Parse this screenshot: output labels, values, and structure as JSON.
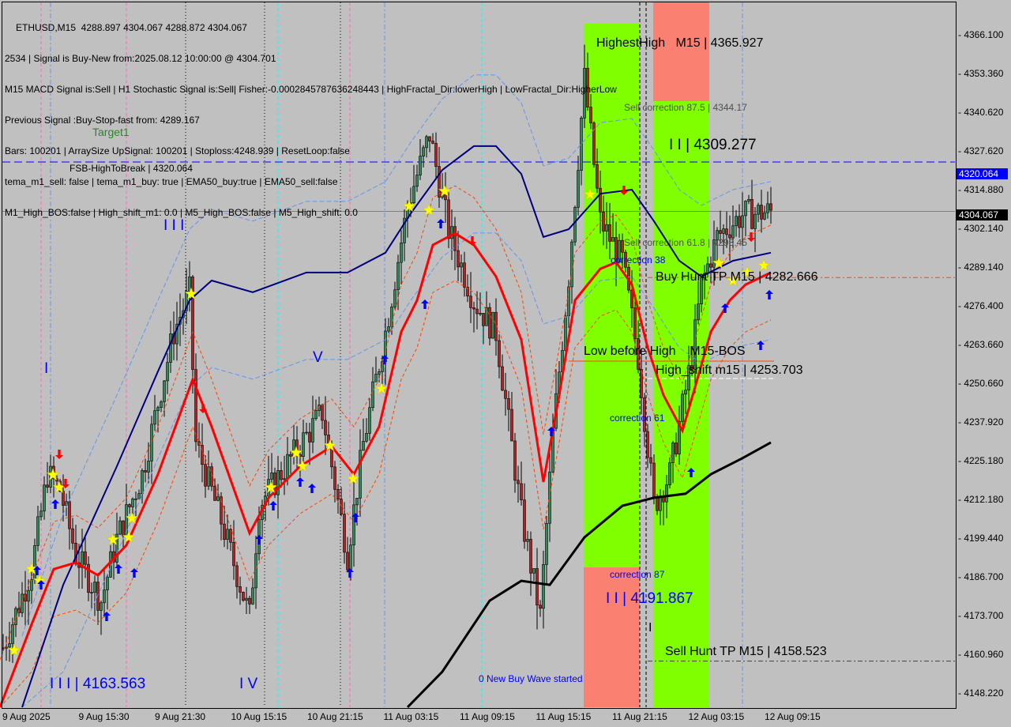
{
  "header": {
    "symbol_line": "ETHUSD,M15  4288.897 4304.067 4288.872 4304.067",
    "lines": [
      "2534 | Signal is Buy-New from:2025.08.12 10:00:00 @ 4304.701",
      "M15 MACD Signal is:Sell | H1 Stochastic Signal is:Sell| Fisher:-0.0002845787636248443 | HighFractal_Dir:lowerHigh | LowFractal_Dir:HigherLow",
      "Previous Signal :Buy-Stop-fast from: 4289.167",
      "Bars: 100201 | ArraySize UpSignal: 100201 | Stoploss:4248.939 | ResetLoop:false",
      "tema_m1_sell: false | tema_m1_buy: true | EMA50_buy:true | EMA50_sell:false",
      "M1_High_BOS:false | High_shift_m1: 0.0 | M5_High_BOS:false | M5_High_shift: 0.0"
    ]
  },
  "annotations": {
    "target1": "Target1",
    "fsb": "FSB-HighToBreak | 4320.064",
    "highest_high": "HighestHigh   M15 | 4365.927",
    "sell_corr_875": "Sell correction 87.5 | 4344.17",
    "wave_ii_high": "I I | 4309.277",
    "sell_corr_618": "Sell correction 61.8 | 4293.45",
    "corr_38": "correction 38",
    "buy_hunt": "Buy Hunt TP M15 | 4282.666",
    "low_before_high": "Low before High    M15-BOS",
    "high_shift": "High_shift m15 | 4253.703",
    "corr_61": "correction 61",
    "corr_87": "correction 87",
    "wave_ii_low": "I I | 4191.867",
    "wave_i_black": "I",
    "sell_hunt": "Sell Hunt TP M15 | 4158.523",
    "new_buy_wave": "0 New Buy Wave started",
    "wave_iii_low": "I I I | 4163.563",
    "wave_iv": "I V",
    "wave_iii": "I I I",
    "wave_v": "V",
    "wave_i": "I"
  },
  "chart_data": {
    "type": "candlestick",
    "symbol": "ETHUSD",
    "timeframe": "M15",
    "ylim": [
      4142,
      4372
    ],
    "y_ticks": [
      "4366.100",
      "4353.360",
      "4340.620",
      "4327.620",
      "4314.880",
      "4302.140",
      "4289.140",
      "4276.400",
      "4263.660",
      "4250.660",
      "4237.920",
      "4225.180",
      "4212.180",
      "4199.440",
      "4186.700",
      "4173.700",
      "4160.960",
      "4148.220"
    ],
    "x_ticks": [
      "9 Aug 2025",
      "9 Aug 15:30",
      "9 Aug 21:30",
      "10 Aug 15:15",
      "10 Aug 21:15",
      "11 Aug 03:15",
      "11 Aug 09:15",
      "11 Aug 15:15",
      "11 Aug 21:15",
      "12 Aug 03:15",
      "12 Aug 09:15"
    ],
    "current_price": "4304.067",
    "fsb_price_label": "4320.064",
    "fsb_price": 4320.064,
    "last_price": 4304.067,
    "buy_hunt_price": 4282.666,
    "high_shift_price": 4253.703,
    "sell_hunt_price": 4158.523,
    "close_path": [
      [
        1,
        4162.8
      ],
      [
        10,
        4188
      ],
      [
        15,
        4219
      ],
      [
        19,
        4214
      ],
      [
        24,
        4193
      ],
      [
        32,
        4178
      ],
      [
        37,
        4198
      ],
      [
        45,
        4219
      ],
      [
        55,
        4265
      ],
      [
        60,
        4278
      ],
      [
        62,
        4229
      ],
      [
        70,
        4204
      ],
      [
        79,
        4173
      ],
      [
        82,
        4209
      ],
      [
        92,
        4224
      ],
      [
        102,
        4239
      ],
      [
        110,
        4193
      ],
      [
        115,
        4229
      ],
      [
        122,
        4265
      ],
      [
        129,
        4306
      ],
      [
        136,
        4329
      ],
      [
        142,
        4298
      ],
      [
        150,
        4275
      ],
      [
        157,
        4265
      ],
      [
        165,
        4206
      ],
      [
        171,
        4173
      ],
      [
        175,
        4232
      ],
      [
        180,
        4283
      ],
      [
        185,
        4347
      ],
      [
        190,
        4301
      ],
      [
        197,
        4288
      ],
      [
        202,
        4257
      ],
      [
        207,
        4209
      ],
      [
        212,
        4219
      ],
      [
        219,
        4257
      ],
      [
        222,
        4280
      ],
      [
        227,
        4296
      ],
      [
        235,
        4303
      ],
      [
        244,
        4304
      ]
    ],
    "fast_ma": [
      [
        0,
        4142.3
      ],
      [
        10,
        4170.4
      ],
      [
        17,
        4188.3
      ],
      [
        24,
        4190.4
      ],
      [
        31,
        4186.3
      ],
      [
        40,
        4196.0
      ],
      [
        50,
        4219.0
      ],
      [
        61,
        4249.7
      ],
      [
        67,
        4234.4
      ],
      [
        75,
        4211.4
      ],
      [
        79,
        4199.9
      ],
      [
        85,
        4211.4
      ],
      [
        95,
        4221.6
      ],
      [
        105,
        4228.0
      ],
      [
        112,
        4219.0
      ],
      [
        120,
        4234.4
      ],
      [
        127,
        4265.1
      ],
      [
        132,
        4275.3
      ],
      [
        137,
        4293.2
      ],
      [
        144,
        4297.0
      ],
      [
        150,
        4293.2
      ],
      [
        157,
        4283.0
      ],
      [
        165,
        4262.5
      ],
      [
        172,
        4216.5
      ],
      [
        177,
        4244.6
      ],
      [
        182,
        4275.3
      ],
      [
        190,
        4285.5
      ],
      [
        195,
        4287.6
      ],
      [
        200,
        4280.4
      ],
      [
        205,
        4260.0
      ],
      [
        210,
        4244.6
      ],
      [
        216,
        4233.1
      ],
      [
        220,
        4247.2
      ],
      [
        225,
        4265.1
      ],
      [
        231,
        4275.3
      ],
      [
        236,
        4280.4
      ],
      [
        244,
        4284.3
      ]
    ],
    "slow_ma": [
      [
        7,
        4142.3
      ],
      [
        20,
        4183.2
      ],
      [
        37,
        4221.6
      ],
      [
        50,
        4252.3
      ],
      [
        60,
        4275.3
      ],
      [
        67,
        4281.7
      ],
      [
        80,
        4277.9
      ],
      [
        97,
        4284.3
      ],
      [
        110,
        4284.3
      ],
      [
        122,
        4290.7
      ],
      [
        130,
        4303.4
      ],
      [
        140,
        4317.5
      ],
      [
        150,
        4325.2
      ],
      [
        157,
        4325.2
      ],
      [
        165,
        4316.2
      ],
      [
        172,
        4295.8
      ],
      [
        180,
        4298.3
      ],
      [
        190,
        4309.8
      ],
      [
        200,
        4311.1
      ],
      [
        207,
        4300.9
      ],
      [
        215,
        4288.1
      ],
      [
        222,
        4283.0
      ],
      [
        232,
        4288.1
      ],
      [
        244,
        4290.7
      ]
    ],
    "long_ma": [
      [
        129,
        4143.6
      ],
      [
        140,
        4155.1
      ],
      [
        155,
        4178.1
      ],
      [
        165,
        4184.5
      ],
      [
        174,
        4183.2
      ],
      [
        185,
        4198.6
      ],
      [
        197,
        4208.8
      ],
      [
        207,
        4211.4
      ],
      [
        217,
        4212.7
      ],
      [
        225,
        4219.0
      ],
      [
        235,
        4224.2
      ],
      [
        244,
        4229.3
      ]
    ],
    "colors": {
      "fast_ma": "#ff0000",
      "slow_ma": "#00007f",
      "long_ma": "#000000",
      "bull": "#2e8b57",
      "bear": "#b22222",
      "zone_green": "#7fff00",
      "zone_red": "#fa8072",
      "fsb_line": "#0000ff",
      "last_tag": "#000000",
      "fsb_tag": "#0000ff"
    }
  }
}
